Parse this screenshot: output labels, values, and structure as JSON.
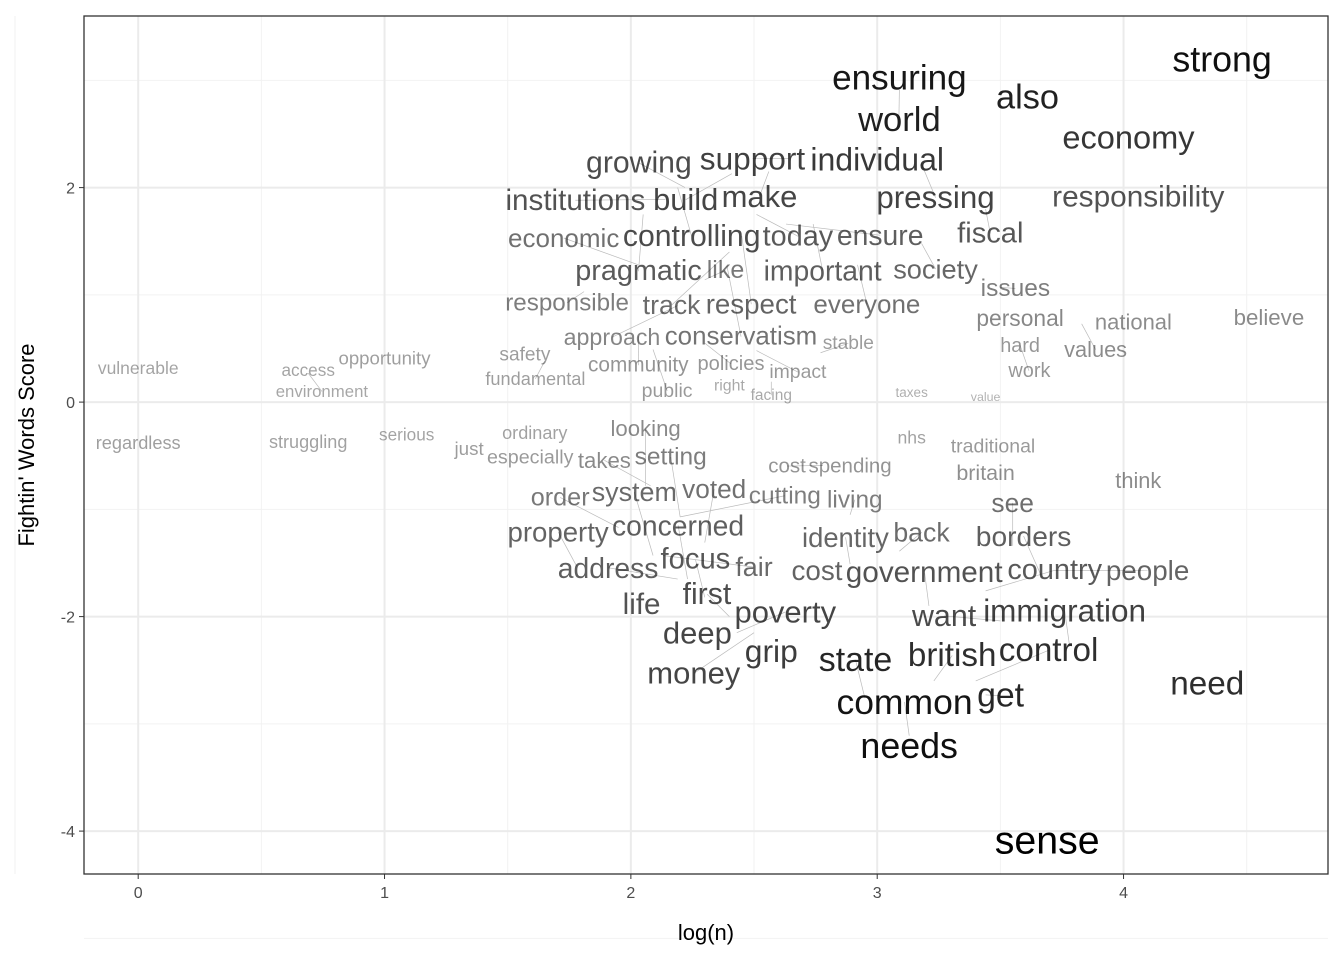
{
  "chart_data": {
    "type": "scatter",
    "subtype": "text-labels",
    "title": "",
    "xlabel": "log(n)",
    "ylabel": "Fightin' Words Score",
    "xlim": [
      -0.22,
      4.83
    ],
    "ylim": [
      -4.4,
      3.6
    ],
    "xticks": [
      0,
      1,
      2,
      3,
      4
    ],
    "yticks": [
      -4,
      -2,
      0,
      2
    ],
    "ytick_labels": [
      "-4",
      "-2",
      "0",
      "2"
    ],
    "grid": true,
    "points": [
      {
        "label": "strong",
        "x": 4.4,
        "y": 3.2
      },
      {
        "label": "ensuring",
        "x": 3.09,
        "y": 3.03
      },
      {
        "label": "world",
        "x": 3.09,
        "y": 2.91
      },
      {
        "label": "also",
        "x": 3.61,
        "y": 2.85
      },
      {
        "label": "economy",
        "x": 4.02,
        "y": 2.47
      },
      {
        "label": "individual",
        "x": 3.0,
        "y": 2.38
      },
      {
        "label": "pressing",
        "x": 3.18,
        "y": 2.22
      },
      {
        "label": "support",
        "x": 2.64,
        "y": 2.27
      },
      {
        "label": "make",
        "x": 2.56,
        "y": 2.15
      },
      {
        "label": "build",
        "x": 2.41,
        "y": 2.13
      },
      {
        "label": "responsibility",
        "x": 4.06,
        "y": 1.92
      },
      {
        "label": "fiscal",
        "x": 3.44,
        "y": 1.8
      },
      {
        "label": "growing",
        "x": 2.22,
        "y": 2.0
      },
      {
        "label": "controlling",
        "x": 2.19,
        "y": 2.0
      },
      {
        "label": "institutions",
        "x": 2.14,
        "y": 1.89
      },
      {
        "label": "today",
        "x": 2.51,
        "y": 1.75
      },
      {
        "label": "pragmatic",
        "x": 2.05,
        "y": 1.75
      },
      {
        "label": "important",
        "x": 2.74,
        "y": 1.66
      },
      {
        "label": "ensure",
        "x": 2.63,
        "y": 1.66
      },
      {
        "label": "society",
        "x": 3.18,
        "y": 1.48
      },
      {
        "label": "respect",
        "x": 2.45,
        "y": 1.55
      },
      {
        "label": "track",
        "x": 2.4,
        "y": 1.4
      },
      {
        "label": "economic",
        "x": 2.03,
        "y": 1.28
      },
      {
        "label": "conservatism",
        "x": 2.39,
        "y": 1.27
      },
      {
        "label": "everyone",
        "x": 2.92,
        "y": 1.28
      },
      {
        "label": "like",
        "x": 2.3,
        "y": 1.14
      },
      {
        "label": "responsible",
        "x": 1.81,
        "y": 1.03
      },
      {
        "label": "approach",
        "x": 2.19,
        "y": 0.9
      },
      {
        "label": "issues",
        "x": 3.5,
        "y": 1.07
      },
      {
        "label": "personal",
        "x": 3.58,
        "y": 0.85
      },
      {
        "label": "values",
        "x": 3.83,
        "y": 0.73
      },
      {
        "label": "national",
        "x": 4.04,
        "y": 0.75
      },
      {
        "label": "believe",
        "x": 4.59,
        "y": 0.79
      },
      {
        "label": "hard",
        "x": 3.58,
        "y": 0.53
      },
      {
        "label": "work",
        "x": 3.58,
        "y": 0.53
      },
      {
        "label": "community",
        "x": 2.03,
        "y": 0.62
      },
      {
        "label": "public",
        "x": 2.09,
        "y": 0.49
      },
      {
        "label": "policies",
        "x": 2.3,
        "y": 0.55
      },
      {
        "label": "impact",
        "x": 2.51,
        "y": 0.48
      },
      {
        "label": "stable",
        "x": 2.77,
        "y": 0.46
      },
      {
        "label": "right",
        "x": 2.4,
        "y": 0.21
      },
      {
        "label": "facing",
        "x": 2.57,
        "y": 0.19
      },
      {
        "label": "opportunity",
        "x": 1.0,
        "y": 0.41
      },
      {
        "label": "safety",
        "x": 1.57,
        "y": 0.45
      },
      {
        "label": "fundamental",
        "x": 1.65,
        "y": 0.38
      },
      {
        "label": "taxes",
        "x": 3.14,
        "y": 0.09
      },
      {
        "label": "value",
        "x": 3.44,
        "y": 0.05
      },
      {
        "label": "vulnerable",
        "x": 0.0,
        "y": 0.32
      },
      {
        "label": "access",
        "x": 0.69,
        "y": 0.3
      },
      {
        "label": "environment",
        "x": 0.69,
        "y": 0.27
      },
      {
        "label": "nhs",
        "x": 3.14,
        "y": -0.33
      },
      {
        "label": "serious",
        "x": 1.09,
        "y": -0.3
      },
      {
        "label": "struggling",
        "x": 0.69,
        "y": -0.37
      },
      {
        "label": "regardless",
        "x": 0.0,
        "y": -0.38
      },
      {
        "label": "ordinary",
        "x": 1.61,
        "y": -0.37
      },
      {
        "label": "just",
        "x": 1.38,
        "y": -0.43
      },
      {
        "label": "especially",
        "x": 1.64,
        "y": -0.51
      },
      {
        "label": "traditional",
        "x": 3.47,
        "y": -0.49
      },
      {
        "label": "britain",
        "x": 3.44,
        "y": -0.69
      },
      {
        "label": "think",
        "x": 4.06,
        "y": -0.73
      },
      {
        "label": "spending",
        "x": 2.89,
        "y": -0.59
      },
      {
        "label": "cost",
        "x": 2.78,
        "y": -0.59
      },
      {
        "label": "takes",
        "x": 2.08,
        "y": -0.78
      },
      {
        "label": "looking",
        "x": 2.06,
        "y": -0.78
      },
      {
        "label": "living",
        "x": 2.89,
        "y": -1.05
      },
      {
        "label": "setting",
        "x": 2.2,
        "y": -1.07
      },
      {
        "label": "cutting",
        "x": 2.2,
        "y": -1.07
      },
      {
        "label": "order",
        "x": 1.95,
        "y": -1.17
      },
      {
        "label": "voted",
        "x": 2.3,
        "y": -1.31
      },
      {
        "label": "back",
        "x": 3.09,
        "y": -1.39
      },
      {
        "label": "see",
        "x": 3.55,
        "y": -1.34
      },
      {
        "label": "identity",
        "x": 2.89,
        "y": -1.51
      },
      {
        "label": "cost",
        "x": 2.78,
        "y": -1.57
      },
      {
        "label": "system",
        "x": 2.09,
        "y": -1.43
      },
      {
        "label": "fair",
        "x": 2.13,
        "y": -1.43
      },
      {
        "label": "property",
        "x": 1.78,
        "y": -1.53
      },
      {
        "label": "people",
        "x": 3.72,
        "y": -1.57
      },
      {
        "label": "borders",
        "x": 3.67,
        "y": -1.64
      },
      {
        "label": "concerned",
        "x": 2.23,
        "y": -1.65
      },
      {
        "label": "address",
        "x": 2.19,
        "y": -1.65
      },
      {
        "label": "country",
        "x": 3.44,
        "y": -1.76
      },
      {
        "label": "government",
        "x": 3.21,
        "y": -1.9
      },
      {
        "label": "life",
        "x": 2.08,
        "y": -1.88
      },
      {
        "label": "focus",
        "x": 2.3,
        "y": -1.82
      },
      {
        "label": "first",
        "x": 2.4,
        "y": -2.0
      },
      {
        "label": "want",
        "x": 3.5,
        "y": -2.04
      },
      {
        "label": "deep",
        "x": 2.27,
        "y": -2.15
      },
      {
        "label": "poverty",
        "x": 2.43,
        "y": -2.15
      },
      {
        "label": "money",
        "x": 2.5,
        "y": -2.15
      },
      {
        "label": "grip",
        "x": 2.57,
        "y": -2.32
      },
      {
        "label": "immigration",
        "x": 3.78,
        "y": -2.26
      },
      {
        "label": "need",
        "x": 4.34,
        "y": -2.62
      },
      {
        "label": "british",
        "x": 3.23,
        "y": -2.6
      },
      {
        "label": "control",
        "x": 3.4,
        "y": -2.6
      },
      {
        "label": "get",
        "x": 3.44,
        "y": -2.73
      },
      {
        "label": "state",
        "x": 2.95,
        "y": -2.76
      },
      {
        "label": "common",
        "x": 3.13,
        "y": -3.11
      },
      {
        "label": "needs",
        "x": 3.13,
        "y": -3.2
      },
      {
        "label": "sense",
        "x": 3.69,
        "y": -4.08
      }
    ]
  }
}
